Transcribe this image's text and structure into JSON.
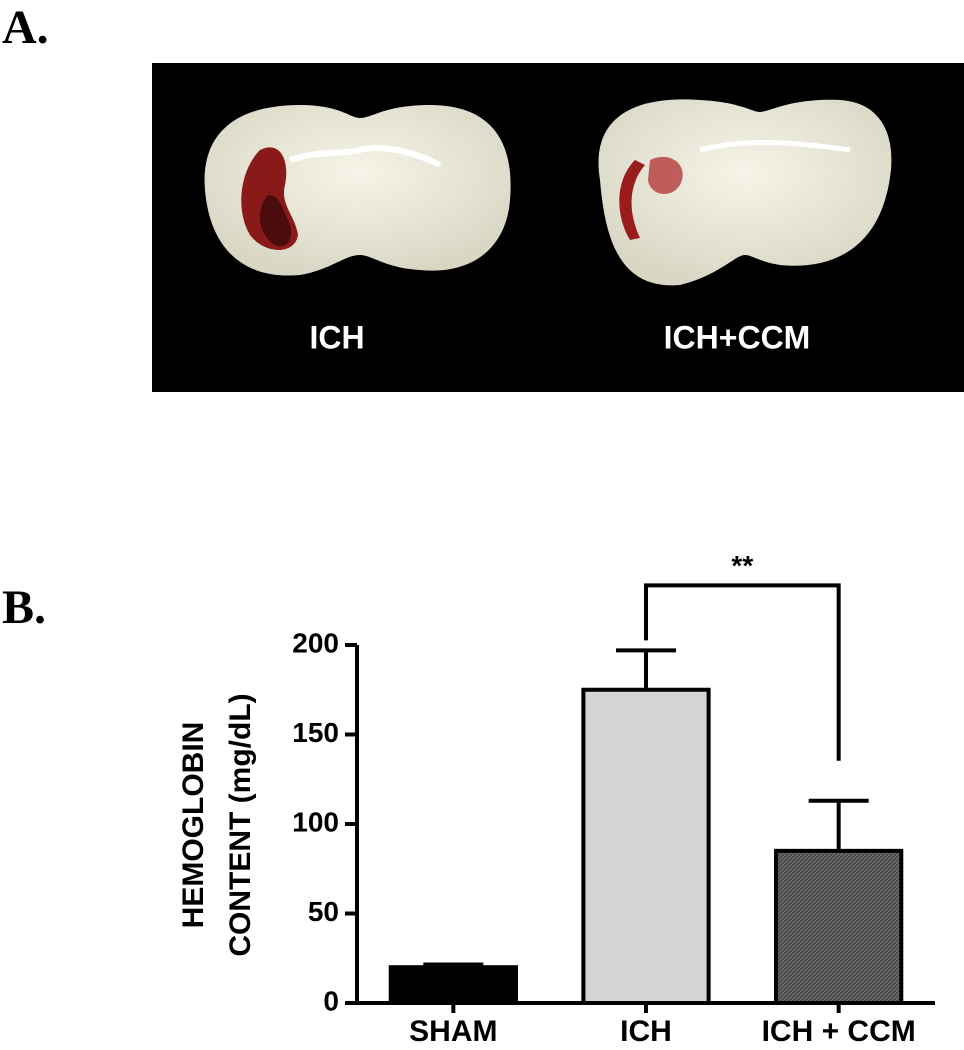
{
  "figure": {
    "panel_a": {
      "label": "A.",
      "image_labels": [
        "ICH",
        "ICH+CCM"
      ]
    },
    "panel_b": {
      "label": "B."
    }
  },
  "chart_data": {
    "type": "bar",
    "ylabel": [
      "HEMOGLOBIN",
      "CONTENT (mg/dL)"
    ],
    "categories": [
      "SHAM",
      "ICH",
      "ICH + CCM"
    ],
    "values": [
      20,
      175,
      85
    ],
    "errors": [
      1.5,
      22,
      28
    ],
    "colors": [
      "#000000",
      "#d4d4d4",
      "#555555"
    ],
    "ylim": [
      0,
      200
    ],
    "yticks": [
      0,
      50,
      100,
      150,
      200
    ],
    "annotation": "**"
  }
}
